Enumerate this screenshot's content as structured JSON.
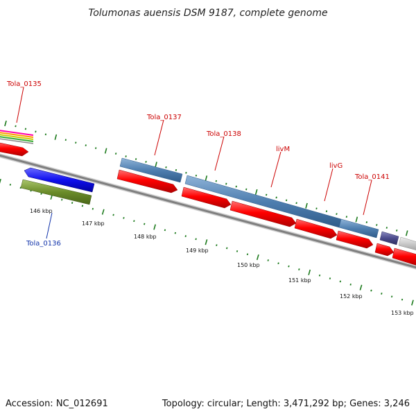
{
  "title": "Tolumonas auensis DSM 9187, complete genome",
  "footer": {
    "accession": "Accession: NC_012691",
    "topology": "Topology: circular; Length: 3,471,292 bp; Genes: 3,246"
  },
  "colors": {
    "backbone": "#7f7f7f",
    "cds_forward": "#4f7fb0",
    "cds_forward_rna": "#ff0000",
    "cds_reverse_blue": "#1010ee",
    "cds_reverse_green": "#6b8c2a",
    "dark_purple": "#4b4b8c",
    "grey_feature": "#c8c8c8",
    "tick": "#1c7a1c",
    "label_forward": "#cc0000",
    "label_reverse": "#1133aa"
  },
  "gene_labels": [
    {
      "id": "tola-0135",
      "text": "Tola_0135",
      "strand": "forward"
    },
    {
      "id": "tola-0136",
      "text": "Tola_0136",
      "strand": "reverse"
    },
    {
      "id": "tola-0137",
      "text": "Tola_0137",
      "strand": "forward"
    },
    {
      "id": "tola-0138",
      "text": "Tola_0138",
      "strand": "forward"
    },
    {
      "id": "livm",
      "text": "livM",
      "strand": "forward"
    },
    {
      "id": "livg",
      "text": "livG",
      "strand": "forward"
    },
    {
      "id": "tola-0141",
      "text": "Tola_0141",
      "strand": "forward"
    }
  ],
  "kbp_labels": [
    "146 kbp",
    "147 kbp",
    "148 kbp",
    "149 kbp",
    "150 kbp",
    "151 kbp",
    "152 kbp",
    "153 kbp"
  ]
}
